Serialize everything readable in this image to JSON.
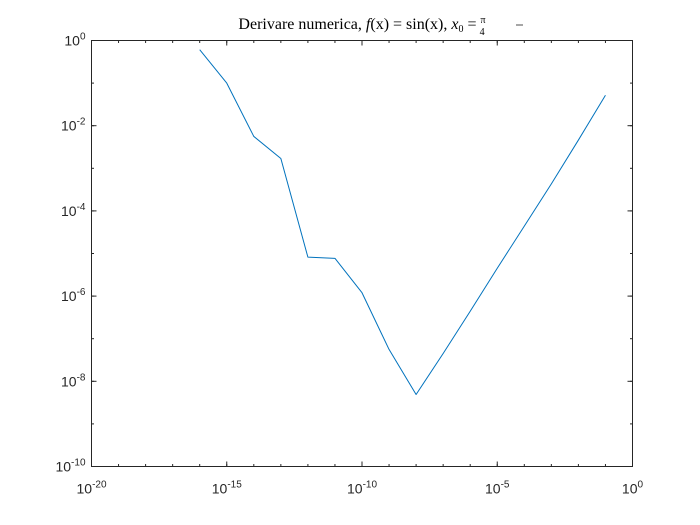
{
  "chart_data": {
    "type": "line",
    "title": {
      "prefix": "Derivare numerica, ",
      "f_text": "f",
      "fx_open": "(x) = sin(x), ",
      "x0_text": "x",
      "x0_sub": "0",
      "eq": " = ",
      "frac_num": "π",
      "frac_den": "4"
    },
    "xscale": "log",
    "yscale": "log",
    "xlim": [
      1e-20,
      1
    ],
    "ylim": [
      1e-10,
      1
    ],
    "grid": false,
    "x_ticks": [
      {
        "base": "10",
        "exp": "-20",
        "value": 1e-20
      },
      {
        "base": "10",
        "exp": "-15",
        "value": 1e-15
      },
      {
        "base": "10",
        "exp": "-10",
        "value": 1e-10
      },
      {
        "base": "10",
        "exp": "-5",
        "value": 1e-05
      },
      {
        "base": "10",
        "exp": "0",
        "value": 1
      }
    ],
    "y_ticks": [
      {
        "base": "10",
        "exp": "0",
        "value": 1
      },
      {
        "base": "10",
        "exp": "-2",
        "value": 0.01
      },
      {
        "base": "10",
        "exp": "-4",
        "value": 0.0001
      },
      {
        "base": "10",
        "exp": "-6",
        "value": 1e-06
      },
      {
        "base": "10",
        "exp": "-8",
        "value": 1e-08
      },
      {
        "base": "10",
        "exp": "-10",
        "value": 1e-10
      }
    ],
    "series": [
      {
        "color": "#0072BD",
        "x": [
          1e-16,
          1e-15,
          1e-14,
          1e-13,
          1e-12,
          1e-11,
          1e-10,
          1e-09,
          1e-08,
          1e-07,
          1e-06,
          1e-05,
          0.0001,
          0.001,
          0.01,
          0.1
        ],
        "y": [
          0.61,
          0.1,
          0.0056,
          0.0017,
          8.2e-06,
          7.7e-06,
          1.2e-06,
          5.6e-08,
          4.9e-09,
          4.5e-08,
          4.4e-07,
          4.5e-06,
          4.4e-05,
          0.00043,
          0.0046,
          0.052
        ]
      }
    ]
  }
}
